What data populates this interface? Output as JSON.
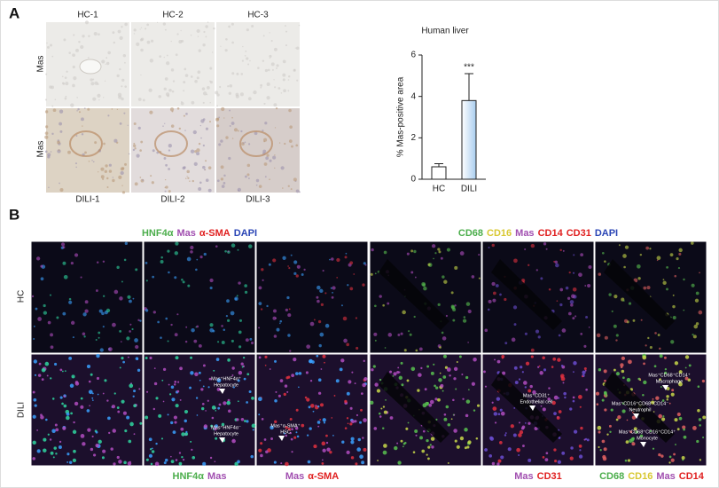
{
  "panel_a": {
    "label": "A",
    "row_labels": [
      "Mas",
      "Mas"
    ],
    "top_labels": [
      "HC-1",
      "HC-2",
      "HC-3"
    ],
    "bottom_labels": [
      "DILI-1",
      "DILI-2",
      "DILI-3"
    ]
  },
  "chart_data": {
    "type": "bar",
    "title": "Human liver",
    "ylabel": "% Mas-positive area",
    "categories": [
      "HC",
      "DILI"
    ],
    "values": [
      0.6,
      3.8
    ],
    "errors": [
      0.15,
      1.3
    ],
    "colors": [
      "#ffffff",
      "#a9cdef"
    ],
    "significance_labels": [
      null,
      "***"
    ],
    "ylim": [
      0,
      6
    ],
    "yticks": [
      0,
      2,
      4,
      6
    ]
  },
  "panel_b": {
    "label": "B",
    "row_labels": [
      "HC",
      "DILI"
    ],
    "header_left": [
      {
        "text": "HNF4α",
        "color": "#4cae4c"
      },
      {
        "text": "Mas",
        "color": "#a14fb0"
      },
      {
        "text": "α-SMA",
        "color": "#e02020"
      },
      {
        "text": "DAPI",
        "color": "#2a45b5"
      }
    ],
    "header_right": [
      {
        "text": "CD68",
        "color": "#4cae4c"
      },
      {
        "text": "CD16",
        "color": "#d8c832"
      },
      {
        "text": "Mas",
        "color": "#a14fb0"
      },
      {
        "text": "CD14",
        "color": "#e02020"
      },
      {
        "text": "CD31",
        "color": "#e02020"
      },
      {
        "text": "DAPI",
        "color": "#2a45b5"
      }
    ],
    "bottom_labels": [
      [
        {
          "text": "HNF4α",
          "color": "#4cae4c"
        },
        {
          "text": "Mas",
          "color": "#a14fb0"
        }
      ],
      [
        {
          "text": "Mas",
          "color": "#a14fb0"
        },
        {
          "text": "α-SMA",
          "color": "#e02020"
        }
      ],
      [
        {
          "text": "Mas",
          "color": "#a14fb0"
        },
        {
          "text": "CD31",
          "color": "#e02020"
        }
      ],
      [
        {
          "text": "CD68",
          "color": "#4cae4c"
        },
        {
          "text": "CD16",
          "color": "#d8c832"
        },
        {
          "text": "Mas",
          "color": "#a14fb0"
        },
        {
          "text": "CD14",
          "color": "#e02020"
        }
      ]
    ],
    "annotations": [
      {
        "line1": "Mas⁺HNF4α⁺",
        "line2": "Hepatocyte"
      },
      {
        "line1": "Mas⁺HNF4α⁻",
        "line2": "Hepatocyte"
      },
      {
        "line1": "Mas⁺α-SMA⁺",
        "line2": "HSC"
      },
      {
        "line1": "Mas⁺CD31⁺",
        "line2": "Endothelial cell"
      },
      {
        "line1": "Mas⁺CD68⁺CD14⁺",
        "line2": "Macrophage"
      },
      {
        "line1": "Mas⁺CD16⁺CD68⁻CD14⁻",
        "line2": "Neutrophil"
      },
      {
        "line1": "Mas⁺CD68⁺CD16⁺CD14⁺",
        "line2": "Monocyte"
      }
    ]
  }
}
